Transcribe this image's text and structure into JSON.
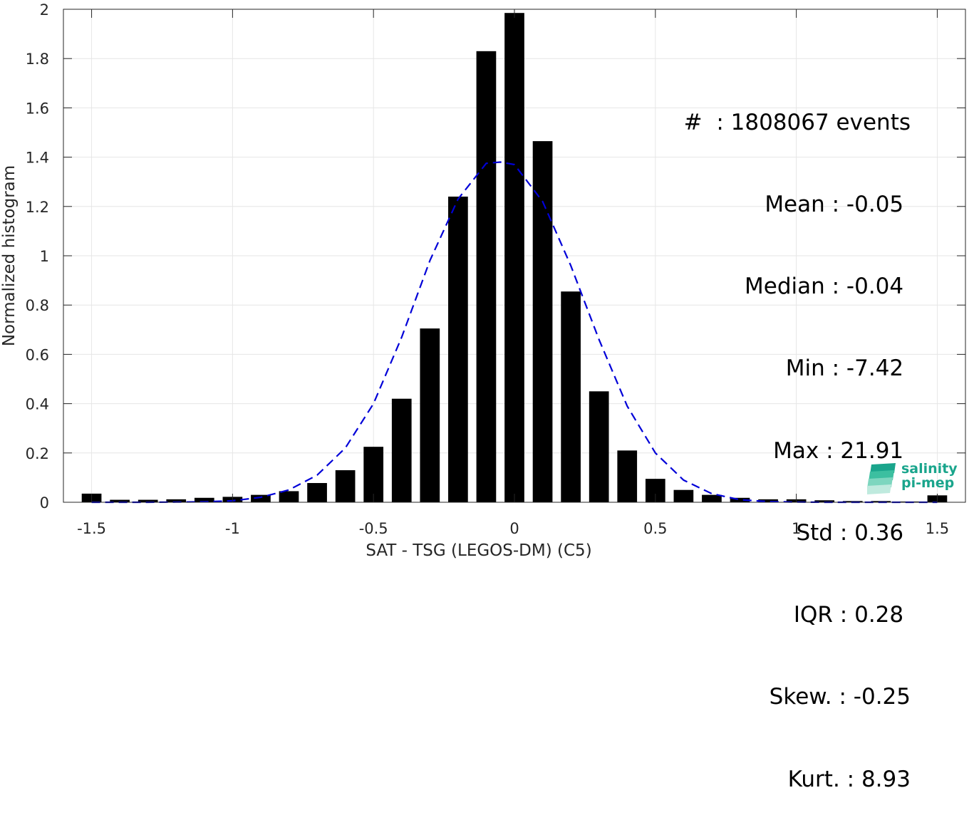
{
  "chart_data": {
    "type": "bar",
    "xlabel": "SAT - TSG (LEGOS-DM) (C5)",
    "ylabel": "Normalized histogram",
    "xlim": [
      -1.6,
      1.6
    ],
    "ylim": [
      0,
      2
    ],
    "xticks": [
      -1.5,
      -1,
      -0.5,
      0,
      0.5,
      1,
      1.5
    ],
    "xtick_labels": [
      "-1.5",
      "-1",
      "-0.5",
      "0",
      "0.5",
      "1",
      "1.5"
    ],
    "yticks": [
      0,
      0.2,
      0.4,
      0.6,
      0.8,
      1,
      1.2,
      1.4,
      1.6,
      1.8,
      2
    ],
    "ytick_labels": [
      "0",
      "0.2",
      "0.4",
      "0.6",
      "0.8",
      "1",
      "1.2",
      "1.4",
      "1.6",
      "1.8",
      "2"
    ],
    "grid": true,
    "bar_width": 0.07,
    "bar_color": "#000000",
    "x": [
      -1.5,
      -1.4,
      -1.3,
      -1.2,
      -1.1,
      -1.0,
      -0.9,
      -0.8,
      -0.7,
      -0.6,
      -0.5,
      -0.4,
      -0.3,
      -0.2,
      -0.1,
      0.0,
      0.1,
      0.2,
      0.3,
      0.4,
      0.5,
      0.6,
      0.7,
      0.8,
      0.9,
      1.0,
      1.1,
      1.2,
      1.3,
      1.4,
      1.5
    ],
    "values": [
      0.035,
      0.01,
      0.01,
      0.012,
      0.018,
      0.022,
      0.03,
      0.045,
      0.078,
      0.13,
      0.225,
      0.42,
      0.705,
      1.24,
      1.83,
      1.985,
      1.465,
      0.855,
      0.45,
      0.21,
      0.095,
      0.05,
      0.03,
      0.018,
      0.012,
      0.012,
      0.008,
      0.005,
      0.005,
      0.003,
      0.028
    ],
    "fit_curve": {
      "color": "#0000d8",
      "style": "dashed",
      "x": [
        -1.5,
        -1.4,
        -1.3,
        -1.2,
        -1.1,
        -1.0,
        -0.9,
        -0.8,
        -0.7,
        -0.6,
        -0.5,
        -0.4,
        -0.3,
        -0.2,
        -0.1,
        -0.05,
        0.0,
        0.1,
        0.2,
        0.3,
        0.4,
        0.5,
        0.6,
        0.7,
        0.8,
        0.9,
        1.0,
        1.1,
        1.2,
        1.3,
        1.4,
        1.5
      ],
      "y": [
        0.0,
        0.0,
        0.0,
        0.001,
        0.002,
        0.006,
        0.02,
        0.05,
        0.11,
        0.22,
        0.4,
        0.67,
        0.98,
        1.23,
        1.375,
        1.38,
        1.37,
        1.22,
        0.96,
        0.66,
        0.39,
        0.2,
        0.09,
        0.035,
        0.01,
        0.003,
        0.001,
        0.0,
        0.0,
        0.0,
        0.0,
        0.0
      ]
    },
    "annotations": [
      "#  : 1808067 events",
      "Mean : -0.05 ",
      "Median : -0.04 ",
      "Min : -7.42 ",
      "Max : 21.91 ",
      "Std : 0.36 ",
      "IQR : 0.28 ",
      "Skew. : -0.25",
      "Kurt. : 8.93"
    ]
  },
  "logo": {
    "line1": "salinity",
    "line2": "pi-mep",
    "color": "#1aa58c"
  }
}
